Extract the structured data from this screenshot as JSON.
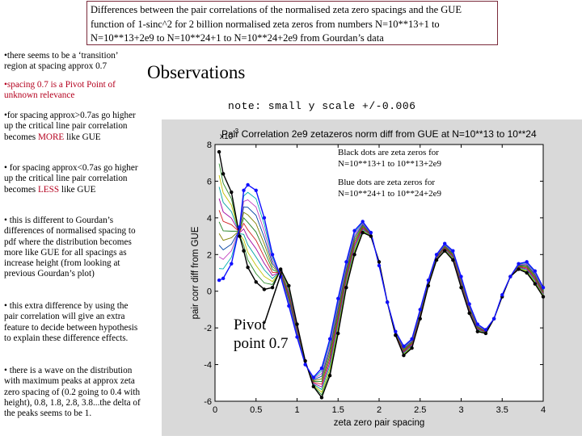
{
  "slide": {
    "title": "Differences between the pair correlations of the normalised zeta zero spacings and the GUE function of 1-sinc^2  for 2 billion normalised zeta zeros from numbers N=10**13+1 to N=10**13+2e9  to N=10**24+1 to N=10**24+2e9 from Gourdan’s data",
    "heading": "Observations",
    "note": "note: small y scale +/-0.006",
    "bullets": {
      "b1": "•there seems to be a ‘transition’ region at spacing approx 0.7",
      "b2": "•spacing 0.7 is a Pivot Point of unknown relevance",
      "b3_pre": "•for spacing approx>0.7as go higher up the critical line pair correlation becomes ",
      "b3_red": "MORE",
      "b3_post": " like GUE",
      "b4_pre": "• for spacing approx<0.7as go higher up the critical line pair correlation becomes ",
      "b4_red": "LESS",
      "b4_post": " like GUE",
      "b5": "• this is different to Gourdan’s differences of normalised spacing to pdf where the distribution becomes more like GUE for all spacings as increase height (from looking at previous Gourdan’s plot)",
      "b6": "• this extra difference by using the pair correlation will give an extra feature to decide between hypothesis to explain these difference effects.",
      "b7": "• there is a wave on the distribution with maximum peaks at approx zeta zero spacing of (0.2 going to 0.4 with height), 0.8, 1.8, 2.8, 3.8...the delta of the peaks seems to be 1."
    },
    "annotations": {
      "pivot_line1": "Pivot",
      "pivot_line2": "point 0.7",
      "legend_black_1": "Black dots are zeta zeros for",
      "legend_black_2": "N=10**13+1 to 10**13+2e9",
      "legend_blue_1": "Blue dots are zeta zeros  for",
      "legend_blue_2": "N=10**24+1 to 10**24+2e9"
    }
  },
  "chart_data": {
    "type": "line",
    "title": "Pair Correlation 2e9 zetazeros norm diff from GUE at N=10**13 to 10**24",
    "xlabel": "zeta zero pair spacing",
    "ylabel": "pair corr diff from GUE",
    "y_exponent_label": "x10",
    "y_exponent_power": "-3",
    "xlim": [
      0,
      4
    ],
    "ylim": [
      -6,
      8
    ],
    "xticks": [
      "0",
      "0.5",
      "1",
      "1.5",
      "2",
      "2.5",
      "3",
      "3.5",
      "4"
    ],
    "yticks": [
      "-6",
      "-4",
      "-2",
      "0",
      "2",
      "4",
      "6",
      "8"
    ],
    "series": [
      {
        "name": "N=10**13+1 to 10**13+2e9",
        "color": "#000000",
        "x": [
          0.05,
          0.1,
          0.2,
          0.3,
          0.35,
          0.4,
          0.5,
          0.6,
          0.7,
          0.8,
          0.9,
          1.0,
          1.1,
          1.2,
          1.3,
          1.4,
          1.5,
          1.6,
          1.7,
          1.8,
          1.9,
          2.0,
          2.1,
          2.2,
          2.3,
          2.4,
          2.5,
          2.6,
          2.7,
          2.8,
          2.9,
          3.0,
          3.1,
          3.2,
          3.3,
          3.4,
          3.5,
          3.6,
          3.7,
          3.8,
          3.9,
          4.0
        ],
        "y": [
          7.6,
          6.4,
          5.4,
          3.0,
          2.2,
          1.3,
          0.5,
          0.1,
          0.2,
          1.2,
          0.3,
          -1.8,
          -3.8,
          -5.2,
          -5.8,
          -4.6,
          -2.3,
          0.2,
          2.0,
          3.2,
          3.0,
          1.6,
          -0.6,
          -2.4,
          -3.5,
          -3.1,
          -1.5,
          0.3,
          1.7,
          2.2,
          1.7,
          0.2,
          -1.2,
          -2.2,
          -2.3,
          -1.5,
          -0.3,
          0.8,
          1.2,
          1.0,
          0.4,
          -0.3
        ]
      },
      {
        "name": "N=10**24+1 to 10**24+2e9",
        "color": "#1010ff",
        "x": [
          0.05,
          0.1,
          0.2,
          0.3,
          0.35,
          0.4,
          0.5,
          0.6,
          0.7,
          0.8,
          0.9,
          1.0,
          1.1,
          1.2,
          1.3,
          1.4,
          1.5,
          1.6,
          1.7,
          1.8,
          1.9,
          2.0,
          2.1,
          2.2,
          2.3,
          2.4,
          2.5,
          2.6,
          2.7,
          2.8,
          2.9,
          3.0,
          3.1,
          3.2,
          3.3,
          3.4,
          3.5,
          3.6,
          3.7,
          3.8,
          3.9,
          4.0
        ],
        "y": [
          0.6,
          0.7,
          1.5,
          3.5,
          5.5,
          5.8,
          5.5,
          4.0,
          2.0,
          0.8,
          -0.8,
          -2.5,
          -4.0,
          -4.7,
          -4.2,
          -2.6,
          -0.4,
          1.6,
          3.3,
          3.8,
          3.2,
          1.4,
          -0.6,
          -2.2,
          -3.0,
          -2.6,
          -1.0,
          0.6,
          2.0,
          2.6,
          2.2,
          0.8,
          -0.7,
          -1.8,
          -2.1,
          -1.5,
          -0.2,
          0.8,
          1.5,
          1.6,
          1.1,
          0.2
        ]
      }
    ]
  }
}
